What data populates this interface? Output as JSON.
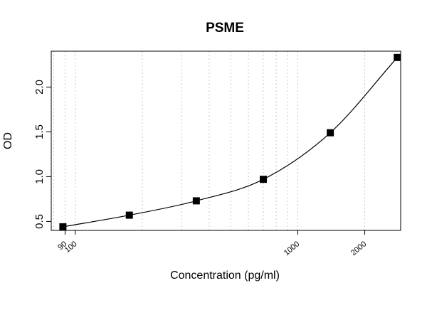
{
  "chart_data": {
    "type": "scatter",
    "title": "PSME",
    "xlabel": "Concentration (pg/ml)",
    "ylabel": "OD",
    "x_scale": "log",
    "xlim": [
      78,
      2900
    ],
    "ylim": [
      0.4,
      2.4
    ],
    "x_ticks": [
      {
        "value": 90,
        "label": "90"
      },
      {
        "value": 100,
        "label": "100"
      },
      {
        "value": 1000,
        "label": "1000"
      },
      {
        "value": 2000,
        "label": "2000"
      }
    ],
    "y_ticks": [
      {
        "value": 0.5,
        "label": "0.5"
      },
      {
        "value": 1.0,
        "label": "1.0"
      },
      {
        "value": 1.5,
        "label": "1.5"
      },
      {
        "value": 2.0,
        "label": "2.0"
      }
    ],
    "grid": "vertical dotted",
    "x": [
      88,
      175,
      350,
      700,
      1400,
      2800
    ],
    "y": [
      0.44,
      0.57,
      0.73,
      0.97,
      1.49,
      2.33
    ],
    "fit_line": true,
    "colors": {
      "points": "#000000",
      "line": "#000000",
      "grid": "#c8c8c8"
    }
  }
}
